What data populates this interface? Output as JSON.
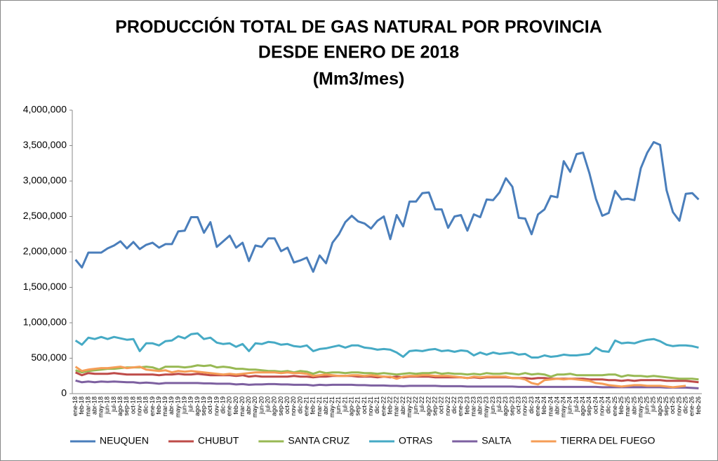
{
  "chart_data": {
    "type": "line",
    "title": [
      "PRODUCCIÓN TOTAL DE GAS NATURAL POR PROVINCIA",
      "DESDE ENERO DE 2018",
      "(Mm3/mes)"
    ],
    "categories": [
      "ene-18",
      "feb-18",
      "mar-18",
      "abr-18",
      "may-18",
      "jun-18",
      "jul-18",
      "ago-18",
      "sep-18",
      "oct-18",
      "nov-18",
      "dic-18",
      "ene-19",
      "feb-19",
      "mar-19",
      "abr-19",
      "may-19",
      "jun-19",
      "jul-19",
      "ago-19",
      "sep-19",
      "oct-19",
      "nov-19",
      "dic-19",
      "ene-20",
      "feb-20",
      "mar-20",
      "abr-20",
      "may-20",
      "jun-20",
      "jul-20",
      "ago-20",
      "sep-20",
      "oct-20",
      "nov-20",
      "dic-20",
      "ene-21",
      "feb-21",
      "mar-21",
      "abr-21",
      "may-21",
      "jun-21",
      "jul-21",
      "ago-21",
      "sep-21",
      "oct-21",
      "nov-21",
      "dic-21",
      "ene-22",
      "feb-22",
      "mar-22",
      "abr-22",
      "may-22",
      "jun-22",
      "jul-22",
      "ago-22",
      "sep-22",
      "oct-22",
      "nov-22",
      "dic-22",
      "ene-23",
      "feb-23",
      "mar-23",
      "abr-23",
      "may-23",
      "jun-23",
      "jul-23",
      "ago-23",
      "sep-23",
      "oct-23",
      "nov-23",
      "dic-23",
      "ene-24",
      "feb-24",
      "mar-24",
      "abr-24",
      "may-24",
      "jun-24",
      "jul-24",
      "ago-24",
      "sep-24",
      "oct-24",
      "nov-24",
      "dic-24",
      "ene-25",
      "feb-25",
      "mar-25",
      "abr-25",
      "may-25",
      "jun-25",
      "jul-25",
      "ago-25",
      "sep-25",
      "oct-25",
      "nov-25",
      "dic-25",
      "ene-26",
      "feb-26"
    ],
    "series": [
      {
        "name": "NEUQUEN",
        "color": "#4a7ebb",
        "values": [
          1890000,
          1780000,
          1990000,
          1990000,
          1990000,
          2050000,
          2090000,
          2150000,
          2050000,
          2140000,
          2040000,
          2100000,
          2130000,
          2060000,
          2110000,
          2110000,
          2290000,
          2300000,
          2490000,
          2490000,
          2270000,
          2420000,
          2070000,
          2150000,
          2230000,
          2060000,
          2130000,
          1870000,
          2090000,
          2070000,
          2190000,
          2190000,
          2010000,
          2060000,
          1850000,
          1880000,
          1920000,
          1720000,
          1950000,
          1840000,
          2130000,
          2250000,
          2420000,
          2510000,
          2430000,
          2400000,
          2330000,
          2440000,
          2500000,
          2180000,
          2520000,
          2360000,
          2710000,
          2710000,
          2830000,
          2840000,
          2600000,
          2600000,
          2340000,
          2500000,
          2520000,
          2300000,
          2530000,
          2490000,
          2740000,
          2730000,
          2840000,
          3040000,
          2920000,
          2480000,
          2470000,
          2250000,
          2530000,
          2600000,
          2790000,
          2770000,
          3280000,
          3130000,
          3380000,
          3400000,
          3110000,
          2750000,
          2510000,
          2550000,
          2860000,
          2740000,
          2750000,
          2730000,
          3180000,
          3400000,
          3550000,
          3510000,
          2870000,
          2560000,
          2440000,
          2820000,
          2830000,
          2740000
        ]
      },
      {
        "name": "CHUBUT",
        "color": "#be4b48",
        "values": [
          300000,
          260000,
          290000,
          280000,
          280000,
          280000,
          290000,
          280000,
          270000,
          270000,
          270000,
          270000,
          270000,
          260000,
          270000,
          270000,
          280000,
          270000,
          270000,
          280000,
          270000,
          260000,
          260000,
          260000,
          260000,
          250000,
          260000,
          240000,
          250000,
          240000,
          240000,
          240000,
          240000,
          240000,
          250000,
          240000,
          240000,
          230000,
          240000,
          240000,
          250000,
          250000,
          250000,
          250000,
          240000,
          240000,
          240000,
          230000,
          240000,
          230000,
          240000,
          230000,
          240000,
          240000,
          240000,
          240000,
          230000,
          230000,
          230000,
          230000,
          230000,
          220000,
          230000,
          220000,
          230000,
          230000,
          230000,
          230000,
          220000,
          220000,
          220000,
          210000,
          220000,
          220000,
          210000,
          210000,
          210000,
          210000,
          210000,
          210000,
          200000,
          200000,
          200000,
          190000,
          190000,
          180000,
          190000,
          180000,
          190000,
          190000,
          190000,
          190000,
          180000,
          180000,
          180000,
          180000,
          170000,
          160000
        ]
      },
      {
        "name": "SANTA CRUZ",
        "color": "#98b954",
        "values": [
          330000,
          300000,
          320000,
          330000,
          340000,
          350000,
          350000,
          360000,
          370000,
          370000,
          370000,
          380000,
          370000,
          340000,
          380000,
          380000,
          380000,
          370000,
          380000,
          400000,
          390000,
          400000,
          370000,
          380000,
          370000,
          350000,
          350000,
          340000,
          340000,
          330000,
          320000,
          320000,
          310000,
          320000,
          300000,
          320000,
          310000,
          280000,
          310000,
          290000,
          300000,
          300000,
          290000,
          300000,
          300000,
          290000,
          290000,
          280000,
          290000,
          280000,
          270000,
          280000,
          290000,
          280000,
          290000,
          290000,
          300000,
          280000,
          290000,
          280000,
          280000,
          270000,
          280000,
          270000,
          290000,
          280000,
          280000,
          290000,
          280000,
          270000,
          290000,
          270000,
          280000,
          270000,
          240000,
          270000,
          270000,
          280000,
          260000,
          260000,
          260000,
          260000,
          260000,
          270000,
          270000,
          240000,
          260000,
          250000,
          250000,
          240000,
          250000,
          240000,
          230000,
          220000,
          210000,
          210000,
          210000,
          200000
        ]
      },
      {
        "name": "OTRAS",
        "color": "#46aac5",
        "values": [
          750000,
          690000,
          790000,
          770000,
          800000,
          770000,
          800000,
          780000,
          760000,
          770000,
          600000,
          710000,
          710000,
          680000,
          740000,
          750000,
          810000,
          780000,
          840000,
          850000,
          770000,
          790000,
          720000,
          700000,
          710000,
          660000,
          700000,
          600000,
          710000,
          700000,
          730000,
          720000,
          690000,
          700000,
          670000,
          660000,
          680000,
          600000,
          630000,
          640000,
          660000,
          680000,
          650000,
          680000,
          680000,
          650000,
          640000,
          620000,
          630000,
          620000,
          580000,
          520000,
          600000,
          610000,
          600000,
          620000,
          630000,
          600000,
          610000,
          590000,
          610000,
          600000,
          540000,
          580000,
          550000,
          580000,
          560000,
          570000,
          580000,
          550000,
          560000,
          510000,
          510000,
          540000,
          520000,
          530000,
          550000,
          540000,
          540000,
          550000,
          560000,
          650000,
          600000,
          590000,
          750000,
          710000,
          720000,
          710000,
          740000,
          760000,
          770000,
          740000,
          690000,
          670000,
          680000,
          680000,
          670000,
          650000
        ]
      },
      {
        "name": "SALTA",
        "color": "#7d60a0",
        "values": [
          185000,
          160000,
          170000,
          160000,
          170000,
          165000,
          170000,
          165000,
          160000,
          160000,
          150000,
          155000,
          150000,
          140000,
          150000,
          150000,
          150000,
          150000,
          150000,
          150000,
          145000,
          145000,
          140000,
          140000,
          140000,
          130000,
          135000,
          125000,
          130000,
          130000,
          135000,
          135000,
          130000,
          130000,
          125000,
          125000,
          125000,
          115000,
          125000,
          120000,
          125000,
          125000,
          125000,
          125000,
          120000,
          120000,
          115000,
          115000,
          115000,
          110000,
          110000,
          105000,
          110000,
          110000,
          110000,
          110000,
          110000,
          105000,
          105000,
          105000,
          105000,
          100000,
          100000,
          100000,
          100000,
          100000,
          100000,
          100000,
          100000,
          95000,
          95000,
          95000,
          95000,
          95000,
          95000,
          95000,
          95000,
          95000,
          95000,
          95000,
          95000,
          95000,
          90000,
          90000,
          90000,
          90000,
          90000,
          90000,
          90000,
          90000,
          90000,
          90000,
          85000,
          85000,
          85000,
          85000,
          80000,
          75000
        ]
      },
      {
        "name": "TIERRA DEL FUEGO",
        "color": "#f59d56",
        "values": [
          380000,
          320000,
          340000,
          350000,
          360000,
          360000,
          370000,
          380000,
          360000,
          370000,
          380000,
          340000,
          330000,
          320000,
          330000,
          300000,
          320000,
          310000,
          320000,
          310000,
          300000,
          290000,
          280000,
          270000,
          280000,
          270000,
          280000,
          290000,
          300000,
          300000,
          300000,
          300000,
          290000,
          300000,
          290000,
          290000,
          280000,
          250000,
          260000,
          270000,
          260000,
          250000,
          250000,
          260000,
          260000,
          250000,
          260000,
          250000,
          240000,
          240000,
          210000,
          240000,
          250000,
          250000,
          260000,
          260000,
          250000,
          250000,
          250000,
          240000,
          230000,
          220000,
          240000,
          230000,
          240000,
          240000,
          240000,
          240000,
          220000,
          220000,
          200000,
          150000,
          130000,
          190000,
          200000,
          210000,
          200000,
          210000,
          200000,
          190000,
          180000,
          150000,
          140000,
          120000,
          110000,
          100000,
          110000,
          120000,
          120000,
          110000,
          110000,
          110000,
          100000,
          90000,
          100000,
          110000,
          null,
          null
        ]
      }
    ],
    "ylim": [
      0,
      4000000
    ],
    "yticks": [
      {
        "value": 0,
        "label": "0"
      },
      {
        "value": 500000,
        "label": "500,000"
      },
      {
        "value": 1000000,
        "label": "1,000,000"
      },
      {
        "value": 1500000,
        "label": "1,500,000"
      },
      {
        "value": 2000000,
        "label": "2,000,000"
      },
      {
        "value": 2500000,
        "label": "2,500,000"
      },
      {
        "value": 3000000,
        "label": "3,000,000"
      },
      {
        "value": 3500000,
        "label": "3,500,000"
      },
      {
        "value": 4000000,
        "label": "4,000,000"
      }
    ],
    "grid": false,
    "legend": "bottom"
  }
}
